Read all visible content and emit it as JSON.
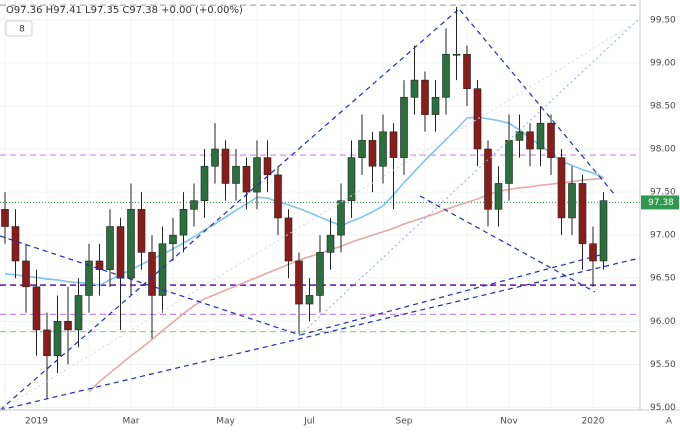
{
  "chart_data": {
    "type": "candlestick",
    "header": "O97.36 H97.41 L97.35 C97.38 +0.00 (+0.00%)",
    "toolbar_label": "8",
    "scale_mode": "A",
    "categories": [
      null,
      null,
      null,
      "2019",
      null,
      null,
      null,
      null,
      null,
      null,
      null,
      null,
      "Mar",
      null,
      null,
      null,
      null,
      null,
      null,
      null,
      null,
      "May",
      null,
      null,
      null,
      null,
      null,
      null,
      null,
      "Jul",
      null,
      null,
      null,
      null,
      null,
      null,
      null,
      null,
      "Sep",
      null,
      null,
      null,
      null,
      null,
      null,
      null,
      null,
      null,
      "Nov",
      null,
      null,
      null,
      null,
      null,
      null,
      null,
      "2020",
      null
    ],
    "open": [
      97.3,
      97.1,
      96.7,
      96.4,
      95.9,
      95.6,
      96.0,
      95.9,
      96.3,
      96.7,
      96.6,
      97.1,
      96.5,
      97.3,
      96.8,
      96.3,
      96.9,
      97.0,
      97.3,
      97.4,
      97.8,
      98.0,
      97.6,
      97.8,
      97.5,
      97.9,
      97.7,
      97.2,
      96.7,
      96.2,
      96.3,
      96.8,
      97.0,
      97.4,
      97.9,
      98.1,
      97.8,
      98.2,
      97.9,
      98.6,
      98.8,
      98.4,
      98.6,
      99.1,
      99.1,
      98.7,
      98.0,
      97.3,
      97.6,
      98.1,
      98.2,
      98.0,
      98.3,
      97.9,
      97.2,
      97.6,
      96.9,
      96.7
    ],
    "high": [
      97.5,
      97.3,
      96.9,
      96.6,
      96.1,
      96.3,
      96.4,
      96.5,
      96.9,
      96.9,
      97.3,
      97.2,
      97.6,
      97.5,
      97.0,
      97.1,
      97.2,
      97.5,
      97.6,
      98.0,
      98.3,
      98.1,
      98.0,
      97.9,
      98.1,
      98.1,
      97.8,
      97.3,
      96.8,
      96.5,
      97.0,
      97.2,
      97.6,
      98.1,
      98.4,
      98.2,
      98.4,
      98.3,
      98.8,
      99.2,
      98.9,
      98.8,
      99.4,
      99.65,
      99.2,
      98.8,
      98.1,
      97.8,
      98.4,
      98.4,
      98.3,
      98.5,
      98.4,
      98.0,
      97.8,
      97.7,
      97.1,
      97.5
    ],
    "low": [
      96.9,
      96.5,
      96.1,
      95.6,
      95.1,
      95.4,
      95.5,
      95.7,
      96.1,
      96.3,
      96.4,
      95.9,
      96.3,
      96.6,
      95.8,
      96.1,
      96.7,
      96.8,
      97.1,
      97.2,
      97.6,
      97.4,
      97.4,
      97.3,
      97.3,
      97.5,
      97.0,
      96.5,
      95.85,
      96.0,
      96.1,
      96.6,
      96.8,
      97.2,
      97.7,
      97.5,
      97.6,
      97.3,
      97.7,
      98.4,
      98.2,
      98.2,
      98.4,
      98.8,
      98.5,
      97.8,
      97.1,
      97.1,
      97.4,
      97.9,
      97.8,
      97.8,
      97.7,
      97.0,
      97.0,
      96.6,
      96.4,
      96.6
    ],
    "close": [
      97.1,
      96.7,
      96.4,
      95.9,
      95.6,
      96.0,
      95.9,
      96.3,
      96.7,
      96.6,
      97.1,
      96.5,
      97.3,
      96.8,
      96.3,
      96.9,
      97.0,
      97.3,
      97.4,
      97.8,
      98.0,
      97.6,
      97.8,
      97.5,
      97.9,
      97.7,
      97.2,
      96.7,
      96.2,
      96.3,
      96.8,
      97.0,
      97.4,
      97.9,
      98.1,
      97.8,
      98.2,
      97.9,
      98.6,
      98.8,
      98.4,
      98.6,
      99.1,
      99.1,
      98.7,
      98.0,
      97.3,
      97.6,
      98.1,
      98.2,
      98.0,
      98.3,
      97.9,
      97.2,
      97.6,
      96.9,
      96.7,
      97.4
    ],
    "up_color": "#2b6f3e",
    "down_color": "#8a1c1c",
    "lines": [
      {
        "color": "#7fc4ea",
        "values": [
          96.55,
          96.54,
          96.52,
          96.51,
          96.49,
          96.48,
          96.46,
          96.45,
          96.44,
          96.42,
          96.48,
          96.54,
          96.6,
          96.66,
          96.72,
          96.78,
          96.84,
          96.91,
          96.98,
          97.06,
          97.13,
          97.21,
          97.29,
          97.36,
          97.44,
          97.43,
          97.39,
          97.35,
          97.31,
          97.26,
          97.21,
          97.16,
          97.11,
          97.16,
          97.21,
          97.27,
          97.34,
          97.47,
          97.61,
          97.74,
          97.87,
          97.99,
          98.11,
          98.23,
          98.36,
          98.37,
          98.35,
          98.33,
          98.3,
          98.22,
          98.13,
          98.04,
          97.95,
          97.86,
          97.81,
          97.76,
          97.72,
          97.67
        ]
      },
      {
        "color": "#e3a9a9",
        "values": [
          null,
          null,
          null,
          null,
          null,
          null,
          null,
          null,
          95.18,
          95.3,
          95.4,
          95.5,
          95.6,
          95.69,
          95.79,
          95.89,
          95.99,
          96.09,
          96.18,
          96.26,
          96.31,
          96.36,
          96.41,
          96.46,
          96.51,
          96.56,
          96.61,
          96.66,
          96.71,
          96.75,
          96.79,
          96.83,
          96.87,
          96.92,
          96.96,
          97.0,
          97.04,
          97.08,
          97.13,
          97.17,
          97.21,
          97.25,
          97.3,
          97.34,
          97.38,
          97.42,
          97.47,
          97.51,
          97.53,
          97.55,
          97.56,
          97.58,
          97.59,
          97.61,
          97.62,
          97.64,
          97.65,
          97.66
        ]
      }
    ],
    "hlines": [
      {
        "value": 99.67,
        "color": "#9a9a9a",
        "width": 1
      },
      {
        "value": 97.93,
        "color": "#c48be8",
        "width": 1.2
      },
      {
        "value": 96.42,
        "color": "#7a2bc4",
        "width": 1.8
      },
      {
        "value": 96.08,
        "color": "#c48be8",
        "width": 1.2
      },
      {
        "value": 95.88,
        "color": "#8fd48f",
        "width": 1.2
      }
    ],
    "last_price": 97.38,
    "last_color": "#2f9a4f",
    "ylim": [
      94.97,
      99.73
    ],
    "yticks": [
      {
        "value": 95,
        "label": "95.00"
      },
      {
        "value": 95.5,
        "label": "95.50"
      },
      {
        "value": 96,
        "label": "96.00"
      },
      {
        "value": 96.5,
        "label": "96.50"
      },
      {
        "value": 97,
        "label": "97.00"
      },
      {
        "value": 97.5,
        "label": "97.50"
      },
      {
        "value": 98,
        "label": "98.00"
      },
      {
        "value": 98.5,
        "label": "98.50"
      },
      {
        "value": 99,
        "label": "99.00"
      },
      {
        "value": 99.5,
        "label": "99.50"
      }
    ],
    "grid": true
  }
}
